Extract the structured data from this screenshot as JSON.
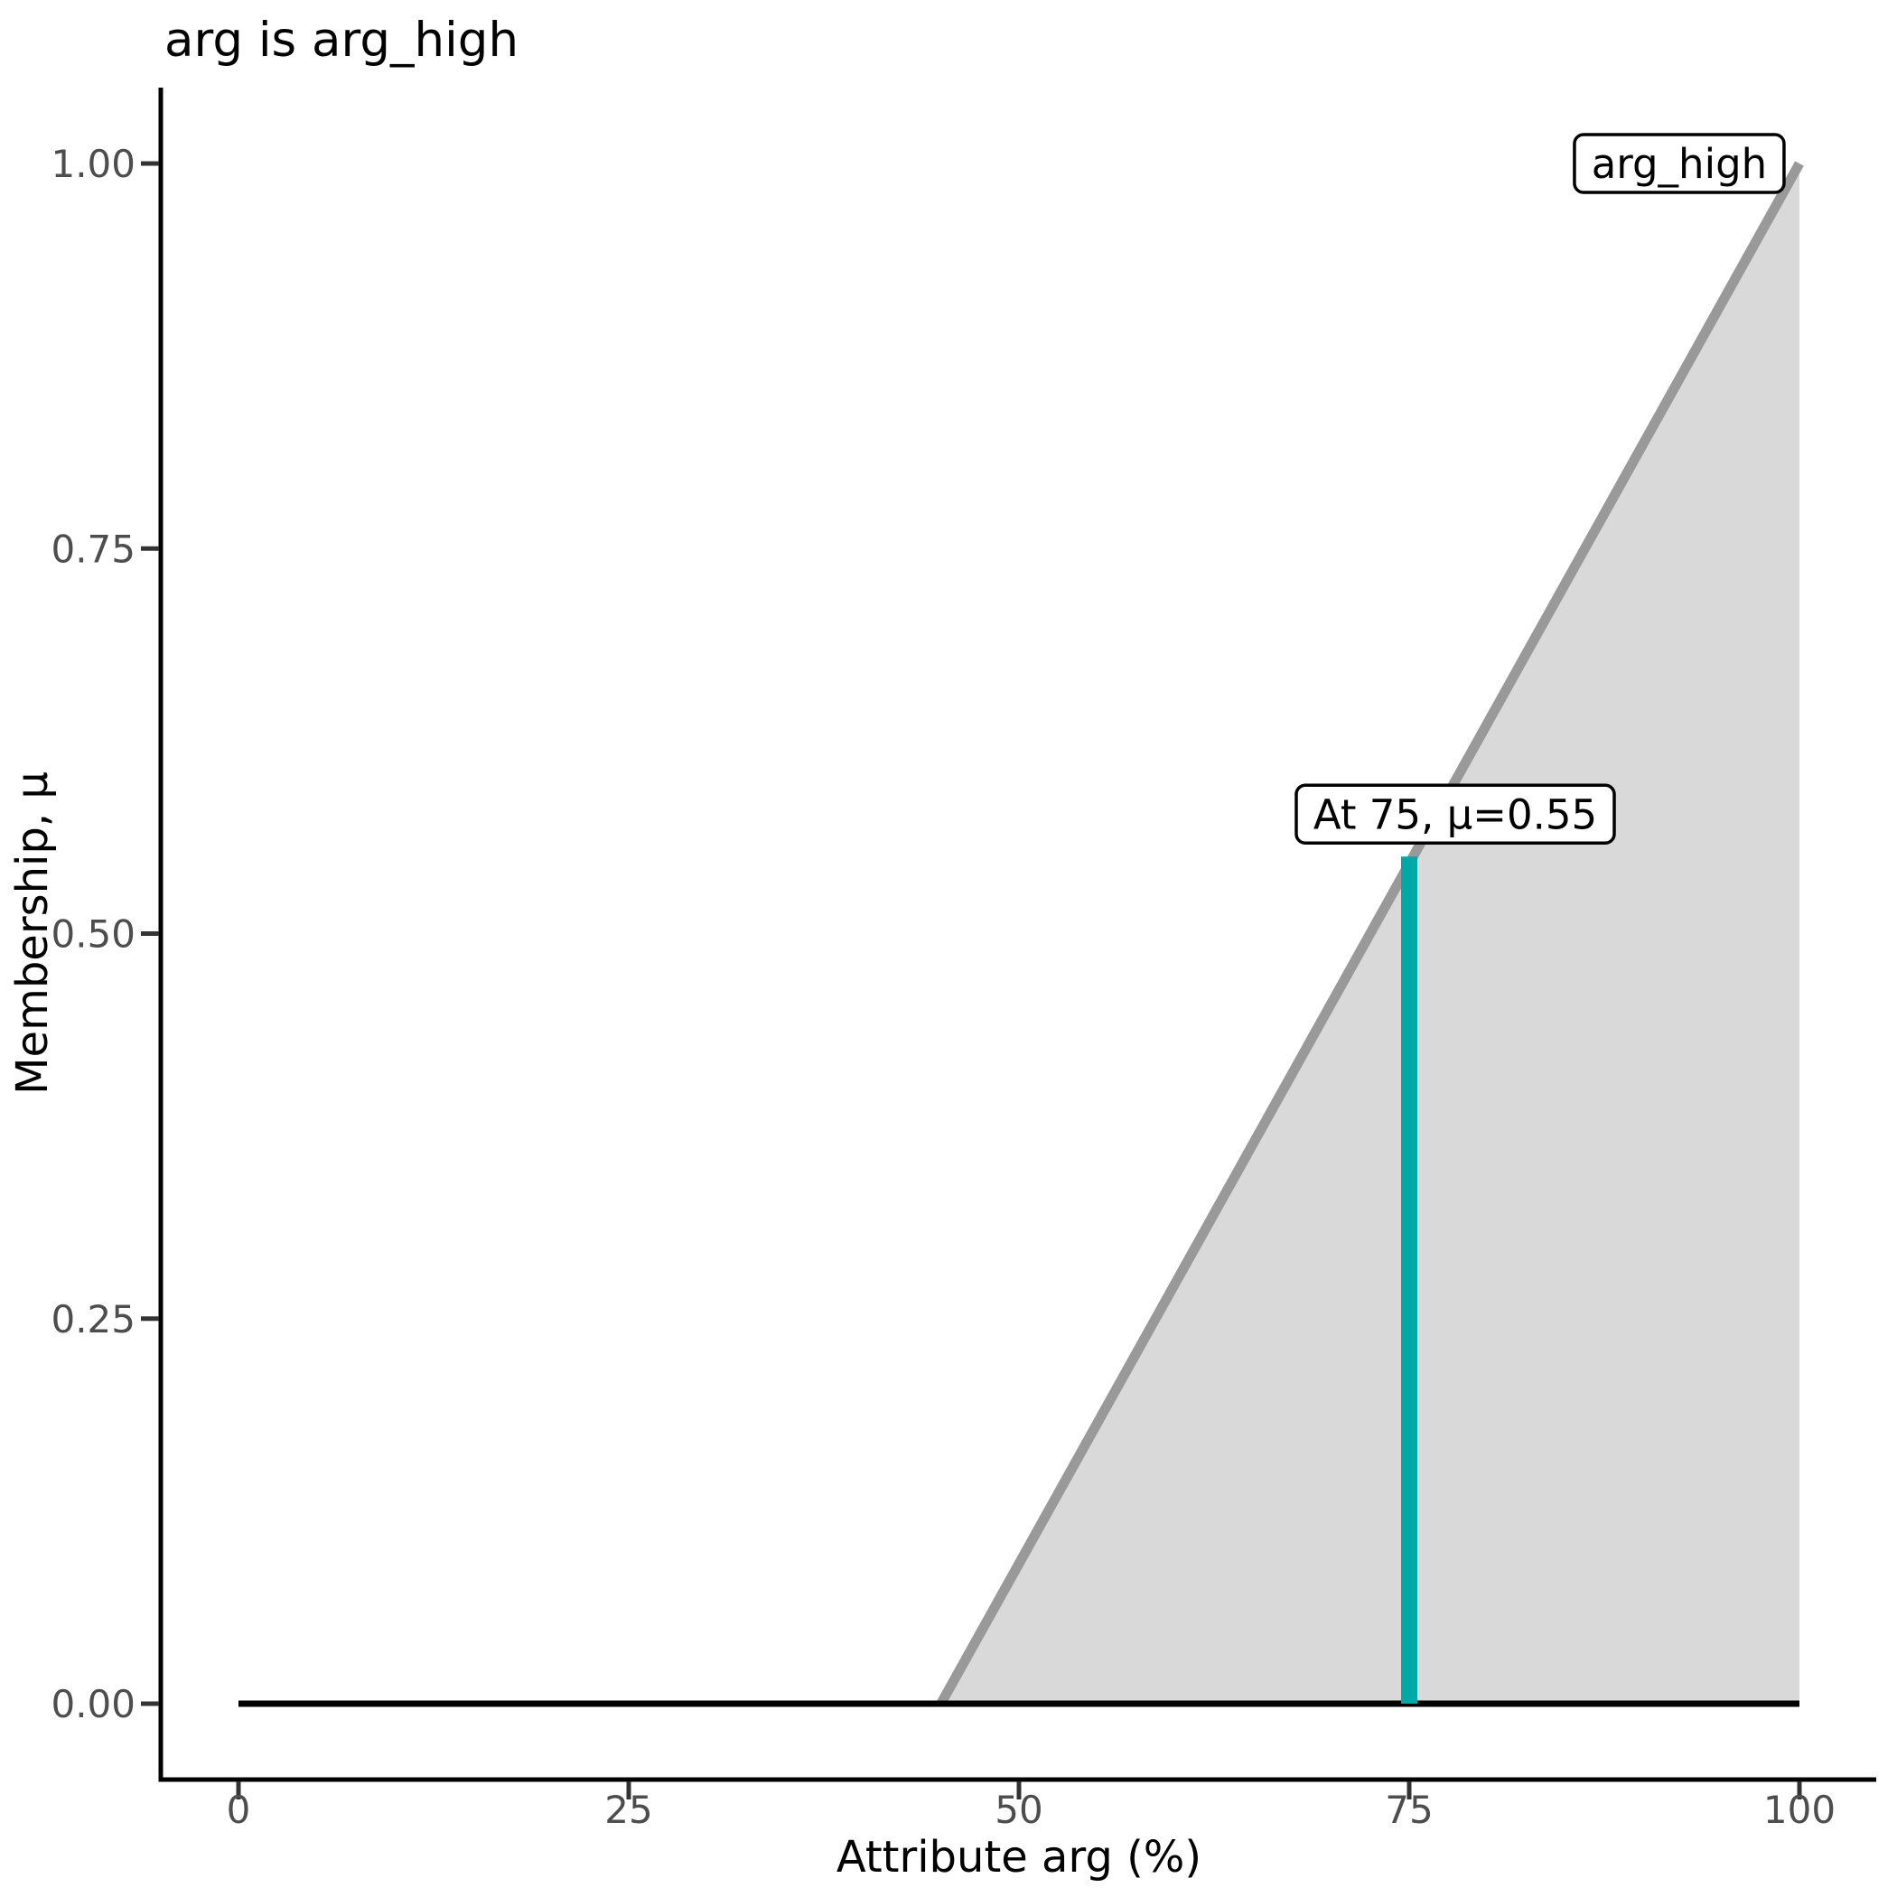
{
  "page": {
    "background": "#ffffff"
  },
  "chart_data": {
    "type": "area",
    "title": "arg is arg_high",
    "xlabel": "Attribute arg (%)",
    "ylabel": "Membership, μ",
    "xlim": [
      0,
      100
    ],
    "ylim": [
      0,
      1
    ],
    "x_ticks": [
      {
        "value": 0,
        "label": "0"
      },
      {
        "value": 25,
        "label": "25"
      },
      {
        "value": 50,
        "label": "50"
      },
      {
        "value": 75,
        "label": "75"
      },
      {
        "value": 100,
        "label": "100"
      }
    ],
    "y_ticks": [
      {
        "value": 0,
        "label": "0.00"
      },
      {
        "value": 0.25,
        "label": "0.25"
      },
      {
        "value": 0.5,
        "label": "0.50"
      },
      {
        "value": 0.75,
        "label": "0.75"
      },
      {
        "value": 1.0,
        "label": "1.00"
      }
    ],
    "grid": false,
    "legend_position": "none",
    "membership_function": {
      "name": "arg_high",
      "points": [
        [
          0,
          0
        ],
        [
          45,
          0
        ],
        [
          100,
          1
        ]
      ],
      "ramp": [
        [
          45,
          0
        ],
        [
          100,
          1
        ]
      ],
      "line_color": "#999999",
      "fill_color": "#d9d9d9"
    },
    "baseline": {
      "points": [
        [
          0,
          0
        ],
        [
          100,
          0
        ]
      ],
      "color": "#000000"
    },
    "evaluation": {
      "x": 75,
      "mu": 0.55,
      "label": "At 75, μ=0.55",
      "color": "#00a8a8"
    },
    "set_label": {
      "text": "arg_high",
      "anchor_x": 92.3,
      "anchor_mu": 1.0
    },
    "axis_color": "#000000",
    "tick_color": "#333333",
    "tick_text_color": "#4d4d4d"
  }
}
